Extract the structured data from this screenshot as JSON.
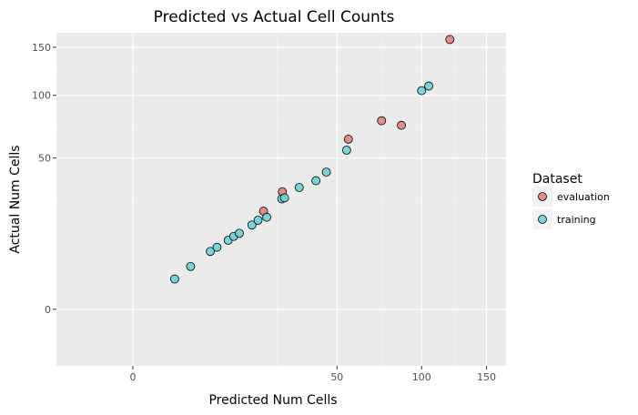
{
  "chart_data": {
    "type": "scatter",
    "title": "Predicted vs Actual Cell Counts",
    "xlabel": "Predicted Num Cells",
    "ylabel": "Actual Num Cells",
    "scale": "sqrt",
    "xlim": [
      -7,
      167
    ],
    "ylim": [
      -7,
      167
    ],
    "x_ticks": [
      0,
      50,
      100,
      150
    ],
    "y_ticks": [
      0,
      50,
      100,
      150
    ],
    "grid": true,
    "legend": {
      "title": "Dataset",
      "position": "right"
    },
    "series": [
      {
        "name": "evaluation",
        "color": "#e0837d",
        "points": [
          [
            20.5,
            21
          ],
          [
            26.8,
            30.2
          ],
          [
            55.7,
            63.2
          ],
          [
            74.2,
            77.6
          ],
          [
            86.5,
            73.9
          ],
          [
            120.5,
            158.9
          ]
        ]
      },
      {
        "name": "training",
        "color": "#6cd1d6",
        "points": [
          [
            2.1,
            2.0
          ],
          [
            4.0,
            4.0
          ],
          [
            7.2,
            7.3
          ],
          [
            8.5,
            8.4
          ],
          [
            10.9,
            10.4
          ],
          [
            12.2,
            11.6
          ],
          [
            13.6,
            12.6
          ],
          [
            17.0,
            15.5
          ],
          [
            18.8,
            17.3
          ],
          [
            21.5,
            18.5
          ],
          [
            26.6,
            26.6
          ],
          [
            27.6,
            27.1
          ],
          [
            33.2,
            32.4
          ],
          [
            40.2,
            36.1
          ],
          [
            44.9,
            41.1
          ],
          [
            54.8,
            55.3
          ],
          [
            100.0,
            104.4
          ],
          [
            105.0,
            108.8
          ]
        ]
      }
    ]
  }
}
